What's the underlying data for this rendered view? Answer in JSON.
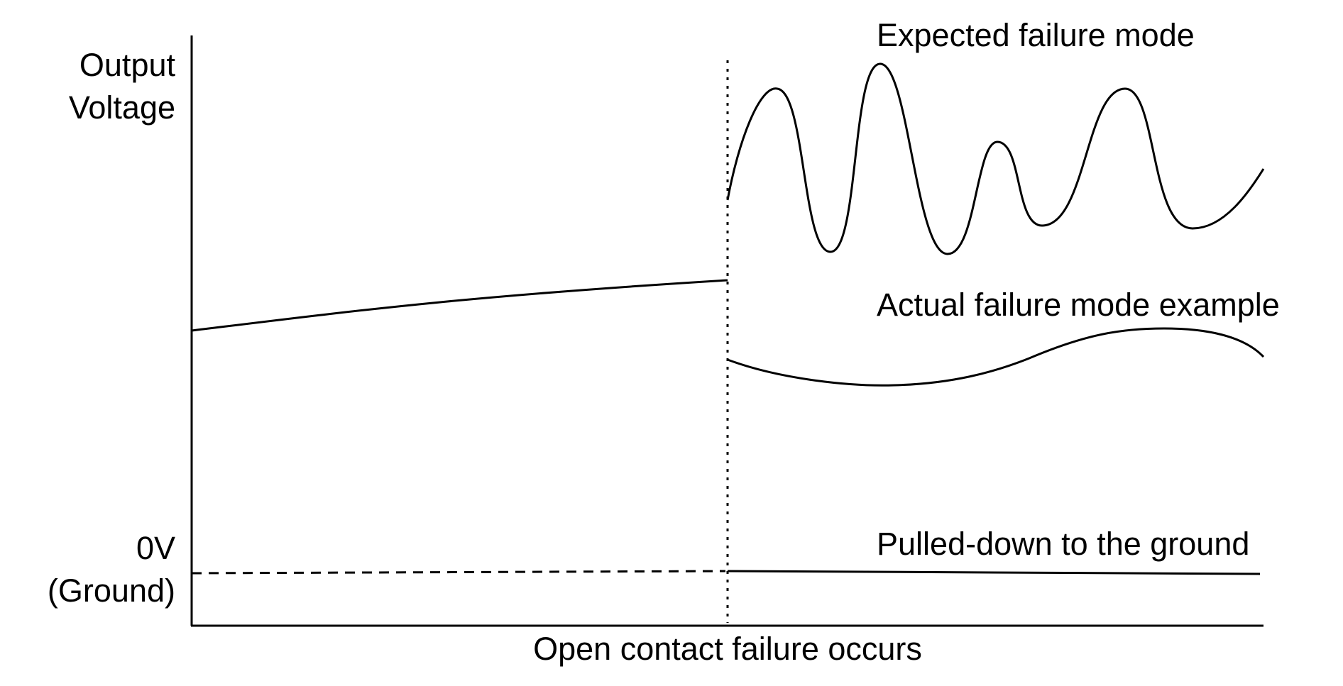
{
  "y_axis": {
    "label_line1": "Output",
    "label_line2": "Voltage",
    "ground_line1": "0V",
    "ground_line2": "(Ground)"
  },
  "x_axis": {
    "event_label": "Open contact failure occurs"
  },
  "curves": {
    "expected": "Expected failure mode",
    "actual": "Actual failure mode example",
    "pulled_down": "Pulled-down to the ground"
  }
}
